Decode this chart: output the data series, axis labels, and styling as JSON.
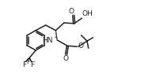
{
  "bg_color": "#ffffff",
  "line_color": "#222222",
  "line_width": 1.1,
  "font_size": 6.5,
  "figsize": [
    1.78,
    1.03
  ],
  "dpi": 100,
  "xlim": [
    0,
    10
  ],
  "ylim": [
    0,
    5.78
  ]
}
